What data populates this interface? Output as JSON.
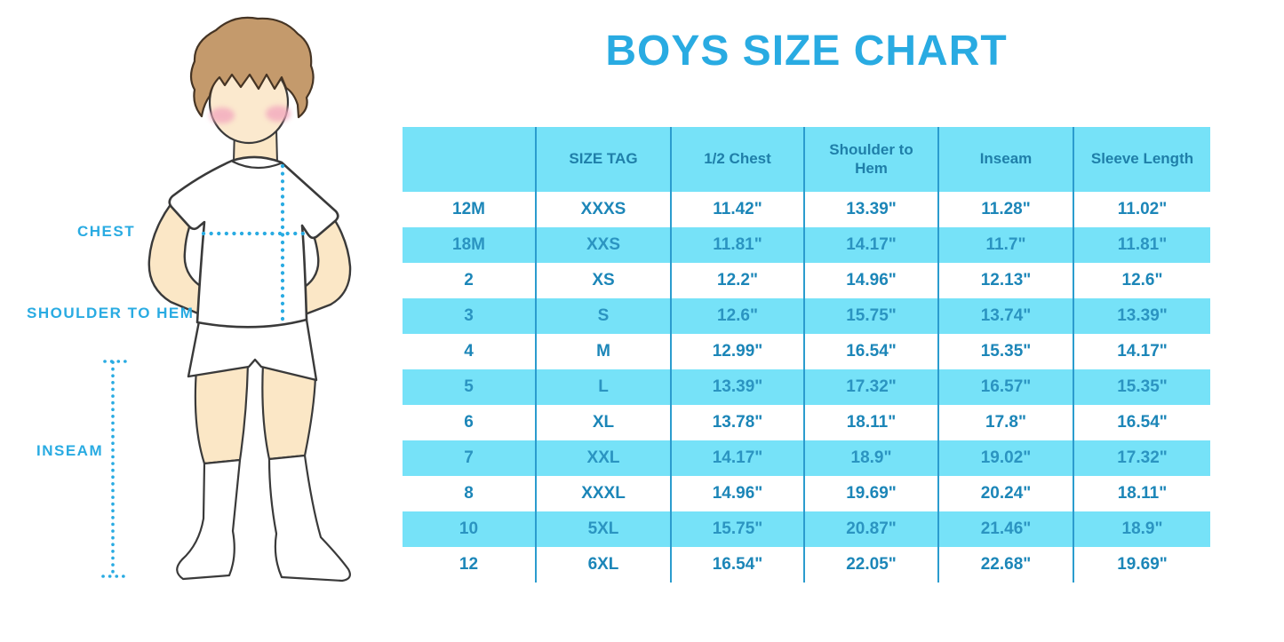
{
  "title": {
    "text": "BOYS SIZE CHART",
    "color": "#29ABE2"
  },
  "figure": {
    "description": "outline illustration of a boy in white t-shirt, shorts and knee socks with measurement guide lines",
    "labels": {
      "chest": "CHEST",
      "shoulder_to_hem": "SHOULDER TO HEM",
      "inseam": "INSEAM"
    }
  },
  "chart_data": {
    "type": "table",
    "title": "BOYS SIZE CHART",
    "units": "inches",
    "columns": [
      "",
      "SIZE TAG",
      "1/2 Chest",
      "Shoulder to Hem",
      "Inseam",
      "Sleeve Length"
    ],
    "rows": [
      [
        "12M",
        "XXXS",
        "11.42\"",
        "13.39\"",
        "11.28\"",
        "11.02\""
      ],
      [
        "18M",
        "XXS",
        "11.81\"",
        "14.17\"",
        "11.7\"",
        "11.81\""
      ],
      [
        "2",
        "XS",
        "12.2\"",
        "14.96\"",
        "12.13\"",
        "12.6\""
      ],
      [
        "3",
        "S",
        "12.6\"",
        "15.75\"",
        "13.74\"",
        "13.39\""
      ],
      [
        "4",
        "M",
        "12.99\"",
        "16.54\"",
        "15.35\"",
        "14.17\""
      ],
      [
        "5",
        "L",
        "13.39\"",
        "17.32\"",
        "16.57\"",
        "15.35\""
      ],
      [
        "6",
        "XL",
        "13.78\"",
        "18.11\"",
        "17.8\"",
        "16.54\""
      ],
      [
        "7",
        "XXL",
        "14.17\"",
        "18.9\"",
        "19.02\"",
        "17.32\""
      ],
      [
        "8",
        "XXXL",
        "14.96\"",
        "19.69\"",
        "20.24\"",
        "18.11\""
      ],
      [
        "10",
        "5XL",
        "15.75\"",
        "20.87\"",
        "21.46\"",
        "18.9\""
      ],
      [
        "12",
        "6XL",
        "16.54\"",
        "22.05\"",
        "22.68\"",
        "19.69\""
      ]
    ],
    "layout": {
      "header_background": "#76E2F8",
      "stripe_color": "#76E2F8",
      "striped_rows": "even rows cyan starting with second data row",
      "grid_lines": "vertical only",
      "grid_color": "#2B9CCE",
      "text_color": "#1C86B8",
      "header_text_color": "#1F7FA9"
    }
  },
  "colors": {
    "accent_blue": "#29ABE2",
    "cyan_fill": "#76E2F8",
    "line_blue": "#2B9CCE",
    "skin": "#FBE7C6",
    "hair": "#C49A6C",
    "cheek": "#F3A9BE",
    "outline": "#3A3A3A"
  }
}
